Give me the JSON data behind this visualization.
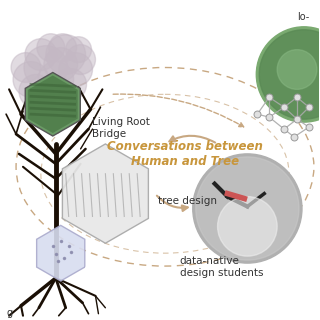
{
  "bg_color": "#ffffff",
  "ellipse_color": "#c8a882",
  "arrow_color": "#c8a882",
  "tree_color": "#1a0f05",
  "blob_color": "#c4b8c4",
  "blob_alpha": 0.5,
  "conversations_text": "Conversations between\nHuman and Tree",
  "conversations_color": "#c8963c",
  "living_root_label": "Living Root\nBridge",
  "tree_design_label": "tree design",
  "data_native_label": "data-native\ndesign students",
  "label_fontsize": 7.5,
  "label_color": "#333333",
  "network_color": "#aaaaaa",
  "partial_top_right": "lo-",
  "partial_bot_left": "g"
}
